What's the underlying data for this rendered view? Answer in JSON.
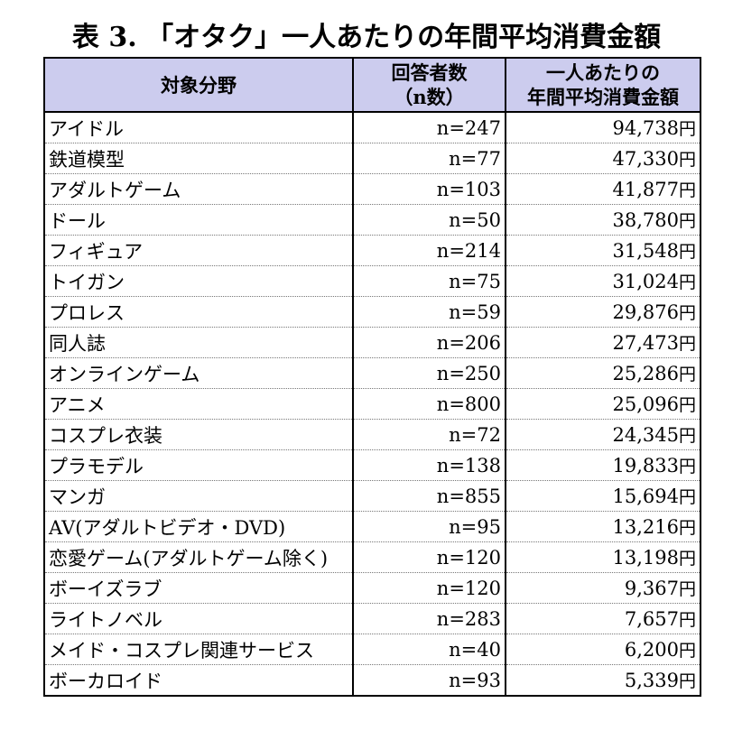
{
  "title": "表 3. 「オタク」一人あたりの年間平均消費金額",
  "header": {
    "category": "対象分野",
    "respondents_line1": "回答者数",
    "respondents_line2": "（n数）",
    "amount_line1": "一人あたりの",
    "amount_line2": "年間平均消費金額"
  },
  "unit": "円",
  "rows": [
    {
      "category": "アイドル",
      "n": "n=247",
      "amount": "94,738"
    },
    {
      "category": "鉄道模型",
      "n": "n=77",
      "amount": "47,330"
    },
    {
      "category": "アダルトゲーム",
      "n": "n=103",
      "amount": "41,877"
    },
    {
      "category": "ドール",
      "n": "n=50",
      "amount": "38,780"
    },
    {
      "category": "フィギュア",
      "n": "n=214",
      "amount": "31,548"
    },
    {
      "category": "トイガン",
      "n": "n=75",
      "amount": "31,024"
    },
    {
      "category": "プロレス",
      "n": "n=59",
      "amount": "29,876"
    },
    {
      "category": "同人誌",
      "n": "n=206",
      "amount": "27,473"
    },
    {
      "category": "オンラインゲーム",
      "n": "n=250",
      "amount": "25,286"
    },
    {
      "category": "アニメ",
      "n": "n=800",
      "amount": "25,096"
    },
    {
      "category": "コスプレ衣装",
      "n": "n=72",
      "amount": "24,345"
    },
    {
      "category": "プラモデル",
      "n": "n=138",
      "amount": "19,833"
    },
    {
      "category": "マンガ",
      "n": "n=855",
      "amount": "15,694"
    },
    {
      "category": "AV(アダルトビデオ・DVD)",
      "n": "n=95",
      "amount": "13,216"
    },
    {
      "category": "恋愛ゲーム(アダルトゲーム除く)",
      "n": "n=120",
      "amount": "13,198"
    },
    {
      "category": "ボーイズラブ",
      "n": "n=120",
      "amount": "9,367"
    },
    {
      "category": "ライトノベル",
      "n": "n=283",
      "amount": "7,657"
    },
    {
      "category": "メイド・コスプレ関連サービス",
      "n": "n=40",
      "amount": "6,200"
    },
    {
      "category": "ボーカロイド",
      "n": "n=93",
      "amount": "5,339"
    }
  ]
}
